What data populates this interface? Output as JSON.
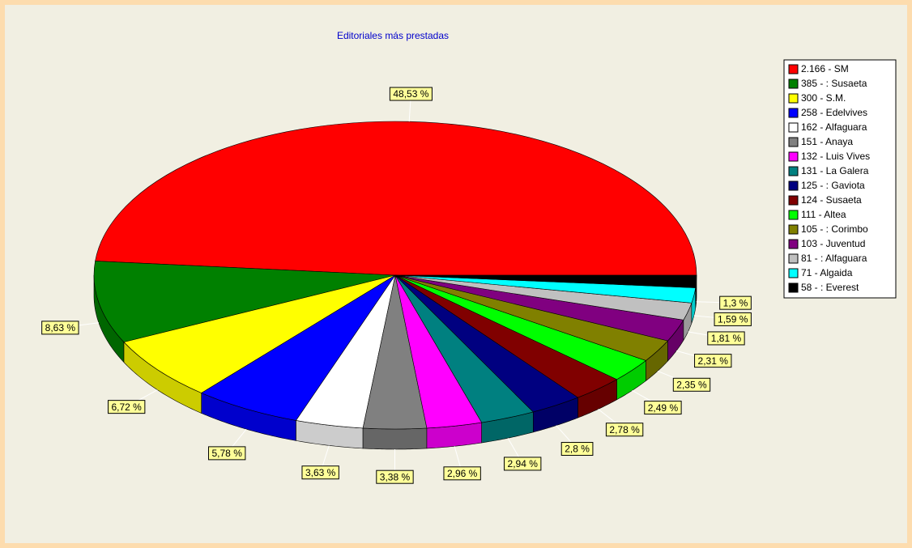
{
  "chart_data": {
    "type": "pie",
    "title": "Editoriales más prestadas",
    "categories": [
      "2.166  - SM",
      "385  - : Susaeta",
      "300  - S.M.",
      "258  - Edelvives",
      "162  - Alfaguara",
      "151  - Anaya",
      "132  - Luis Vives",
      "131  - La Galera",
      "125  - : Gaviota",
      "124  - Susaeta",
      "111  - Altea",
      "105  - : Corimbo",
      "103  - Juventud",
      "81  - : Alfaguara",
      "71  - Algaida",
      "58  - : Everest"
    ],
    "values": [
      48.53,
      8.63,
      6.72,
      5.78,
      3.63,
      3.38,
      2.96,
      2.94,
      2.8,
      2.78,
      2.49,
      2.35,
      2.31,
      1.81,
      1.59,
      1.3
    ],
    "value_labels": [
      "48,53 %",
      "8,63 %",
      "6,72 %",
      "5,78 %",
      "3,63 %",
      "3,38 %",
      "2,96 %",
      "2,94 %",
      "2,8 %",
      "2,78 %",
      "2,49 %",
      "2,35 %",
      "2,31 %",
      "1,81 %",
      "1,59 %",
      "1,3 %"
    ],
    "colors": [
      "#ff0000",
      "#008000",
      "#ffff00",
      "#0000ff",
      "#ffffff",
      "#808080",
      "#ff00ff",
      "#008080",
      "#000080",
      "#800000",
      "#00ff00",
      "#808000",
      "#800080",
      "#c0c0c0",
      "#00ffff",
      "#000000"
    ],
    "legend": "right"
  }
}
